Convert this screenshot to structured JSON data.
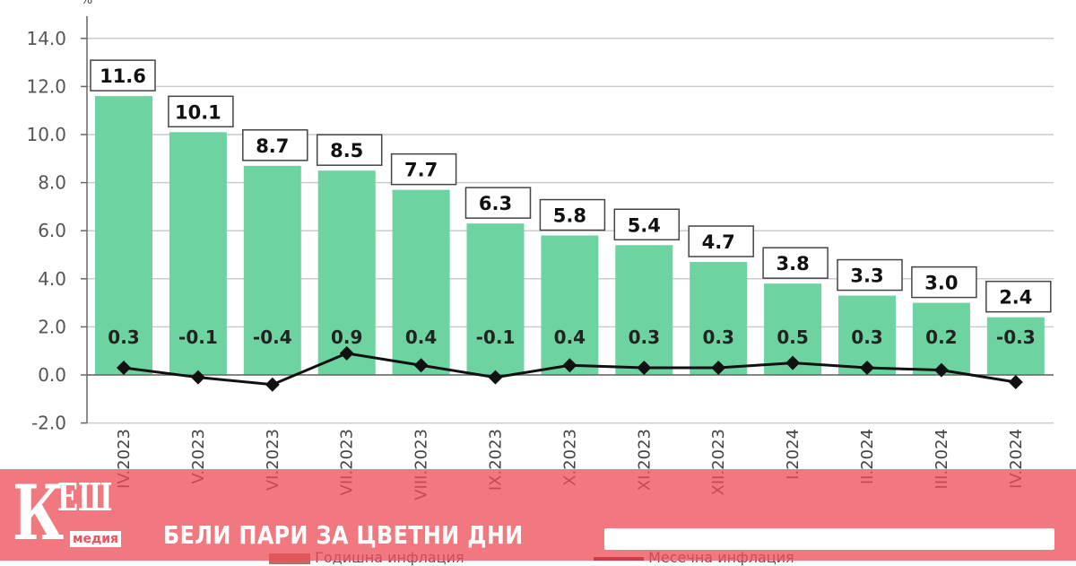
{
  "chart_data": {
    "type": "bar",
    "ylabel": "%",
    "ylim": [
      -2,
      14
    ],
    "yticks": [
      "-2.0",
      "0.0",
      "2.0",
      "4.0",
      "6.0",
      "8.0",
      "10.0",
      "12.0",
      "14.0"
    ],
    "grid": true,
    "categories": [
      "IV.2023",
      "V.2023",
      "VI.2023",
      "VII.2023",
      "VIII.2023",
      "IX.2023",
      "X.2023",
      "XI.2023",
      "XII.2023",
      "I.2024",
      "II.2024",
      "III.2024",
      "IV.2024"
    ],
    "series": [
      {
        "name": "Годишна инфлация",
        "type": "bar",
        "color": "#6dd3a0",
        "values": [
          11.6,
          10.1,
          8.7,
          8.5,
          7.7,
          6.3,
          5.8,
          5.4,
          4.7,
          3.8,
          3.3,
          3.0,
          2.4
        ]
      },
      {
        "name": "Месечна инфлация",
        "type": "line",
        "color": "#111111",
        "values": [
          0.3,
          -0.1,
          -0.4,
          0.9,
          0.4,
          -0.1,
          0.4,
          0.3,
          0.3,
          0.5,
          0.3,
          0.2,
          -0.3
        ]
      }
    ],
    "legend": "bottom"
  },
  "banner": {
    "logo_main": "КЕШ",
    "logo_sub": "медия",
    "slogan": "БЕЛИ ПАРИ ЗА ЦВЕТНИ ДНИ",
    "color": "#ee4e58"
  }
}
